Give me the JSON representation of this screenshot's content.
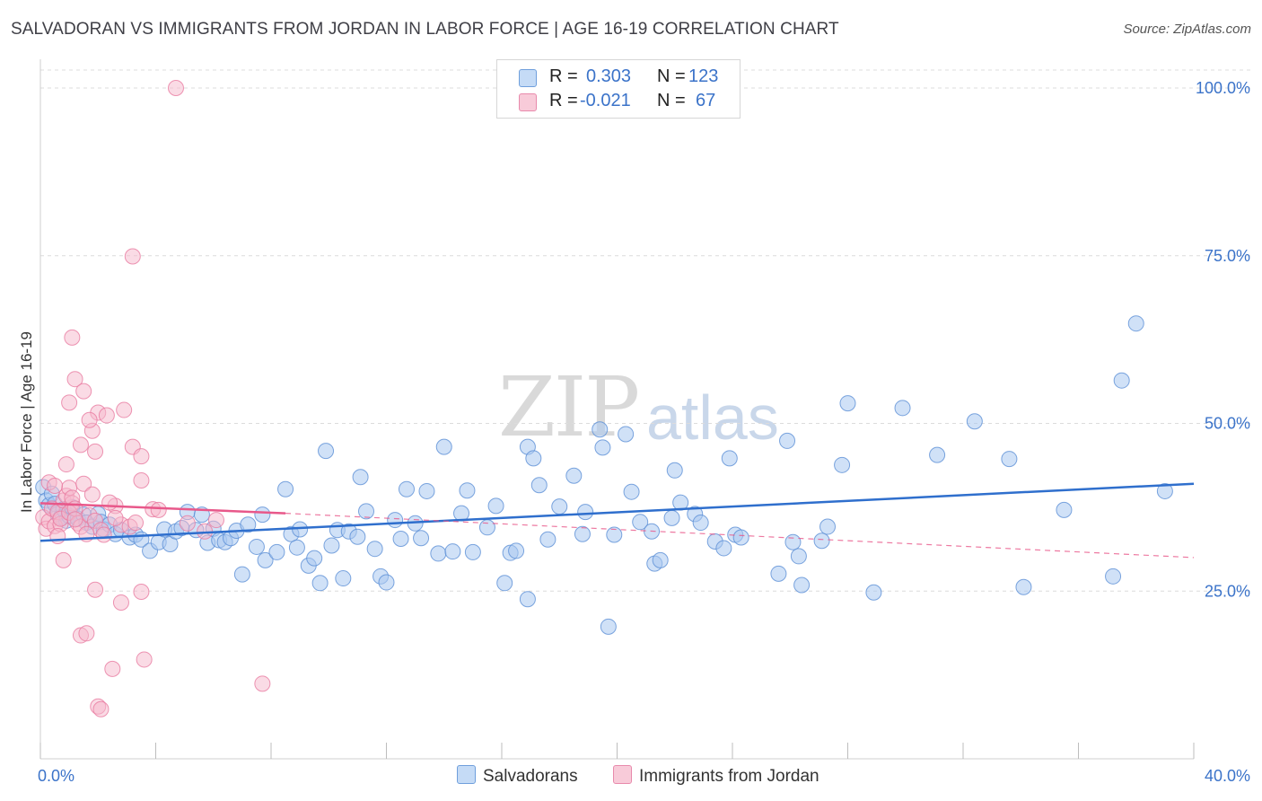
{
  "title": "SALVADORAN VS IMMIGRANTS FROM JORDAN IN LABOR FORCE | AGE 16-19 CORRELATION CHART",
  "source": "Source: ZipAtlas.com",
  "watermark": {
    "zip": "ZIP",
    "atlas": "atlas"
  },
  "legend": {
    "r_label": "R =",
    "n_label": "N =",
    "rows": [
      {
        "r": "0.303",
        "n": "123"
      },
      {
        "r": "-0.021",
        "n": "67"
      }
    ]
  },
  "bottom_legend": [
    "Salvadorans",
    "Immigrants from Jordan"
  ],
  "colors": {
    "blue_fill": "#a9c8f0",
    "blue_stroke": "#5b8fd6",
    "blue_line": "#2f6fcd",
    "pink_fill": "#f5b8cc",
    "pink_stroke": "#e87aa0",
    "pink_line": "#e8588a",
    "tick_label": "#3b73c9"
  },
  "chart_data": {
    "type": "scatter",
    "title": "SALVADORAN VS IMMIGRANTS FROM JORDAN IN LABOR FORCE | AGE 16-19 CORRELATION CHART",
    "xlabel": "",
    "ylabel": "In Labor Force | Age 16-19",
    "xlim": [
      0,
      40
    ],
    "ylim": [
      0,
      102
    ],
    "x_tick_labels": [
      "0.0%",
      "40.0%"
    ],
    "y_ticks": [
      25,
      50,
      75,
      100
    ],
    "y_tick_labels": [
      "25.0%",
      "50.0%",
      "75.0%",
      "100.0%"
    ],
    "grid": true,
    "series": [
      {
        "name": "Salvadorans",
        "r": 0.303,
        "n": 123,
        "trend": {
          "x": [
            0,
            40
          ],
          "y": [
            32.5,
            41.0
          ],
          "style": "solid"
        },
        "points": [
          [
            0.1,
            40.5
          ],
          [
            0.2,
            38.5
          ],
          [
            0.3,
            37.8
          ],
          [
            0.4,
            39.5
          ],
          [
            0.5,
            38.0
          ],
          [
            0.6,
            36.5
          ],
          [
            0.7,
            36.0
          ],
          [
            0.8,
            37.2
          ],
          [
            0.9,
            35.5
          ],
          [
            1.0,
            36.2
          ],
          [
            1.1,
            37.5
          ],
          [
            1.3,
            35.8
          ],
          [
            1.5,
            36.4
          ],
          [
            1.6,
            35.2
          ],
          [
            1.8,
            34.6
          ],
          [
            2.0,
            36.5
          ],
          [
            2.1,
            35.3
          ],
          [
            2.2,
            34.2
          ],
          [
            2.4,
            34.9
          ],
          [
            2.6,
            33.5
          ],
          [
            2.8,
            34.1
          ],
          [
            3.1,
            33.0
          ],
          [
            3.3,
            33.4
          ],
          [
            3.5,
            32.7
          ],
          [
            3.8,
            31.0
          ],
          [
            4.1,
            32.3
          ],
          [
            4.3,
            34.2
          ],
          [
            4.5,
            32.0
          ],
          [
            4.7,
            33.9
          ],
          [
            4.9,
            34.4
          ],
          [
            5.1,
            36.8
          ],
          [
            5.4,
            34.1
          ],
          [
            5.6,
            36.4
          ],
          [
            5.8,
            32.2
          ],
          [
            6.0,
            34.3
          ],
          [
            6.2,
            32.6
          ],
          [
            6.4,
            32.3
          ],
          [
            6.6,
            32.9
          ],
          [
            6.8,
            34.0
          ],
          [
            7.0,
            27.5
          ],
          [
            7.2,
            34.9
          ],
          [
            7.5,
            31.6
          ],
          [
            7.7,
            36.4
          ],
          [
            7.8,
            29.6
          ],
          [
            8.2,
            30.8
          ],
          [
            8.5,
            40.2
          ],
          [
            8.7,
            33.5
          ],
          [
            8.9,
            31.5
          ],
          [
            9.0,
            34.2
          ],
          [
            9.3,
            28.8
          ],
          [
            9.5,
            29.9
          ],
          [
            9.7,
            26.2
          ],
          [
            9.9,
            45.9
          ],
          [
            10.1,
            31.8
          ],
          [
            10.3,
            34.1
          ],
          [
            10.5,
            26.9
          ],
          [
            10.7,
            33.9
          ],
          [
            11.0,
            33.1
          ],
          [
            11.1,
            42.0
          ],
          [
            11.3,
            36.9
          ],
          [
            11.6,
            31.3
          ],
          [
            11.8,
            27.2
          ],
          [
            12.0,
            26.3
          ],
          [
            12.3,
            35.6
          ],
          [
            12.5,
            32.8
          ],
          [
            12.7,
            40.2
          ],
          [
            13.0,
            35.1
          ],
          [
            13.2,
            32.9
          ],
          [
            13.4,
            39.9
          ],
          [
            13.8,
            30.6
          ],
          [
            14.0,
            46.5
          ],
          [
            14.3,
            30.9
          ],
          [
            14.6,
            36.6
          ],
          [
            14.8,
            40.0
          ],
          [
            15.0,
            30.8
          ],
          [
            15.5,
            34.5
          ],
          [
            15.8,
            37.7
          ],
          [
            16.1,
            26.2
          ],
          [
            16.3,
            30.7
          ],
          [
            16.5,
            31.0
          ],
          [
            16.9,
            23.8
          ],
          [
            16.9,
            46.5
          ],
          [
            17.1,
            44.8
          ],
          [
            17.3,
            40.8
          ],
          [
            17.6,
            32.7
          ],
          [
            18.0,
            37.6
          ],
          [
            18.5,
            42.2
          ],
          [
            18.8,
            33.5
          ],
          [
            18.9,
            36.8
          ],
          [
            19.4,
            49.1
          ],
          [
            19.5,
            46.4
          ],
          [
            19.7,
            19.7
          ],
          [
            19.9,
            33.4
          ],
          [
            20.3,
            48.4
          ],
          [
            20.5,
            39.8
          ],
          [
            20.8,
            35.3
          ],
          [
            21.2,
            33.9
          ],
          [
            21.3,
            29.1
          ],
          [
            21.5,
            29.6
          ],
          [
            21.9,
            35.9
          ],
          [
            22.0,
            43.0
          ],
          [
            22.2,
            38.2
          ],
          [
            22.7,
            36.5
          ],
          [
            22.9,
            35.2
          ],
          [
            23.4,
            32.4
          ],
          [
            23.7,
            31.4
          ],
          [
            23.9,
            44.8
          ],
          [
            24.1,
            33.4
          ],
          [
            24.3,
            33.0
          ],
          [
            25.6,
            27.6
          ],
          [
            25.9,
            47.4
          ],
          [
            26.1,
            32.3
          ],
          [
            26.3,
            30.2
          ],
          [
            26.4,
            25.9
          ],
          [
            27.1,
            32.5
          ],
          [
            27.3,
            34.6
          ],
          [
            27.8,
            43.8
          ],
          [
            28.0,
            53.0
          ],
          [
            28.9,
            24.8
          ],
          [
            29.9,
            52.3
          ],
          [
            31.1,
            45.3
          ],
          [
            32.4,
            50.3
          ],
          [
            33.6,
            44.7
          ],
          [
            34.1,
            25.6
          ],
          [
            35.5,
            37.1
          ],
          [
            37.2,
            27.2
          ],
          [
            37.5,
            56.4
          ],
          [
            38.0,
            64.9
          ],
          [
            39.0,
            39.9
          ]
        ]
      },
      {
        "name": "Immigrants from Jordan",
        "r": -0.021,
        "n": 67,
        "trend": {
          "x": [
            0,
            8.5
          ],
          "y": [
            38.1,
            36.6
          ],
          "dashed_to": {
            "x": 40,
            "y": 30.0
          },
          "style": "solid-then-dashed"
        },
        "points": [
          [
            0.1,
            36.0
          ],
          [
            0.2,
            34.3
          ],
          [
            0.3,
            35.4
          ],
          [
            0.4,
            37.3
          ],
          [
            0.5,
            34.7
          ],
          [
            0.6,
            36.8
          ],
          [
            0.7,
            35.0
          ],
          [
            0.8,
            38.5
          ],
          [
            0.9,
            39.2
          ],
          [
            1.0,
            40.4
          ],
          [
            1.1,
            38.1
          ],
          [
            0.3,
            41.2
          ],
          [
            0.5,
            40.7
          ],
          [
            0.6,
            33.2
          ],
          [
            0.7,
            35.8
          ],
          [
            0.8,
            29.6
          ],
          [
            0.9,
            43.9
          ],
          [
            1.0,
            36.7
          ],
          [
            1.1,
            38.9
          ],
          [
            1.2,
            37.3
          ],
          [
            1.3,
            35.1
          ],
          [
            1.4,
            34.6
          ],
          [
            1.5,
            41.0
          ],
          [
            1.6,
            33.5
          ],
          [
            1.7,
            36.3
          ],
          [
            1.8,
            39.4
          ],
          [
            1.9,
            35.5
          ],
          [
            2.1,
            34.1
          ],
          [
            2.2,
            33.4
          ],
          [
            2.6,
            37.7
          ],
          [
            2.8,
            34.9
          ],
          [
            3.1,
            34.6
          ],
          [
            3.3,
            35.2
          ],
          [
            3.5,
            41.5
          ],
          [
            3.9,
            37.2
          ],
          [
            4.1,
            37.1
          ],
          [
            5.1,
            35.1
          ],
          [
            5.7,
            33.9
          ],
          [
            6.1,
            35.6
          ],
          [
            7.7,
            11.2
          ],
          [
            1.0,
            53.1
          ],
          [
            1.2,
            56.6
          ],
          [
            1.5,
            54.8
          ],
          [
            1.8,
            48.9
          ],
          [
            1.9,
            45.8
          ],
          [
            2.0,
            51.6
          ],
          [
            2.3,
            51.2
          ],
          [
            2.6,
            35.9
          ],
          [
            2.9,
            52.0
          ],
          [
            3.2,
            46.5
          ],
          [
            3.5,
            45.1
          ],
          [
            1.4,
            46.8
          ],
          [
            1.7,
            50.5
          ],
          [
            3.2,
            74.9
          ],
          [
            1.1,
            62.8
          ],
          [
            4.7,
            100.0
          ],
          [
            1.9,
            25.2
          ],
          [
            2.8,
            23.3
          ],
          [
            3.5,
            24.9
          ],
          [
            1.4,
            18.4
          ],
          [
            1.6,
            18.7
          ],
          [
            2.5,
            13.4
          ],
          [
            3.6,
            14.8
          ],
          [
            2.0,
            7.8
          ],
          [
            2.1,
            7.4
          ],
          [
            1.2,
            35.7
          ],
          [
            2.4,
            38.2
          ]
        ]
      }
    ]
  }
}
